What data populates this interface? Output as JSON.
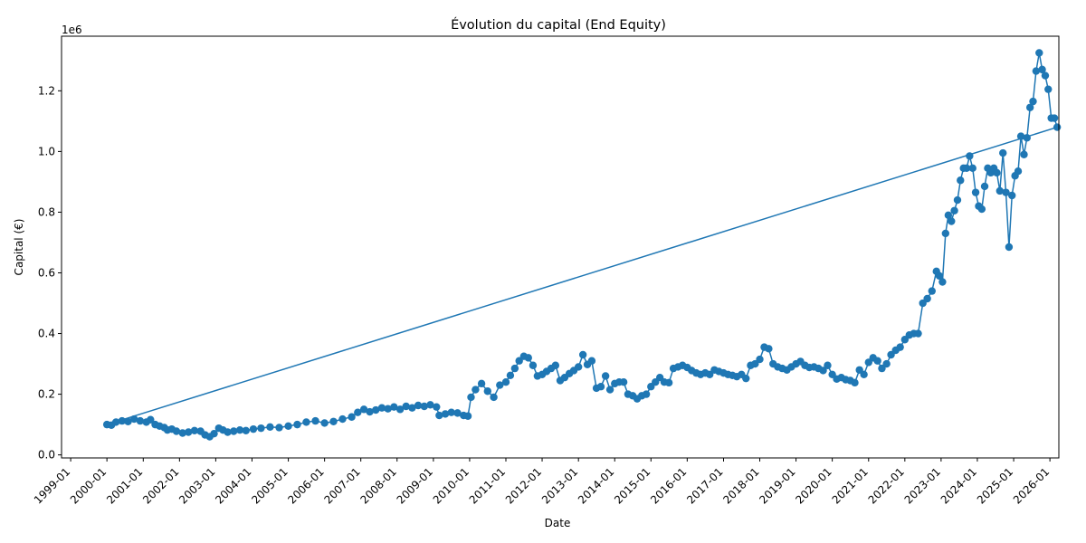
{
  "chart_data": {
    "type": "line",
    "title": "Évolution du capital (End Equity)",
    "xlabel": "Date",
    "ylabel": "Capital (€)",
    "y_offset_label": "1e6",
    "x_tick_labels": [
      "1999-01",
      "2000-01",
      "2001-01",
      "2002-01",
      "2003-01",
      "2004-01",
      "2005-01",
      "2006-01",
      "2007-01",
      "2008-01",
      "2009-01",
      "2010-01",
      "2011-01",
      "2012-01",
      "2013-01",
      "2014-01",
      "2015-01",
      "2016-01",
      "2017-01",
      "2018-01",
      "2019-01",
      "2020-01",
      "2021-01",
      "2022-01",
      "2023-01",
      "2024-01",
      "2025-01",
      "2026-01"
    ],
    "y_ticks": [
      0.0,
      0.2,
      0.4,
      0.6,
      0.8,
      1.0,
      1.2
    ],
    "y_tick_labels": [
      "0.0",
      "0.2",
      "0.4",
      "0.6",
      "0.8",
      "1.0",
      "1.2"
    ],
    "xlim": [
      "1998-10-01",
      "2026-04-01"
    ],
    "ylim": [
      -0.01,
      1.38
    ],
    "y_units": "millions of €",
    "line_color": "#1f77b4",
    "marker": "circle",
    "grid": false,
    "series": [
      {
        "points": [
          [
            "2000-01-01",
            0.1
          ],
          [
            "2000-02-15",
            0.098
          ],
          [
            "2000-04-01",
            0.108
          ],
          [
            "2000-06-01",
            0.112
          ],
          [
            "2000-08-01",
            0.11
          ],
          [
            "2000-10-01",
            0.118
          ],
          [
            "2000-12-01",
            0.112
          ],
          [
            "2001-02-01",
            0.108
          ],
          [
            "2001-03-15",
            0.116
          ],
          [
            "2001-05-01",
            0.1
          ],
          [
            "2001-06-15",
            0.095
          ],
          [
            "2001-08-01",
            0.09
          ],
          [
            "2001-09-01",
            0.082
          ],
          [
            "2001-10-15",
            0.085
          ],
          [
            "2001-12-01",
            0.078
          ],
          [
            "2002-02-01",
            0.072
          ],
          [
            "2002-04-01",
            0.075
          ],
          [
            "2002-06-01",
            0.08
          ],
          [
            "2002-08-01",
            0.078
          ],
          [
            "2002-09-15",
            0.066
          ],
          [
            "2002-11-01",
            0.06
          ],
          [
            "2002-12-15",
            0.07
          ],
          [
            "2003-02-01",
            0.088
          ],
          [
            "2003-03-15",
            0.082
          ],
          [
            "2003-05-01",
            0.075
          ],
          [
            "2003-07-01",
            0.078
          ],
          [
            "2003-09-01",
            0.082
          ],
          [
            "2003-11-01",
            0.08
          ],
          [
            "2004-01-15",
            0.085
          ],
          [
            "2004-04-01",
            0.088
          ],
          [
            "2004-07-01",
            0.092
          ],
          [
            "2004-10-01",
            0.09
          ],
          [
            "2005-01-01",
            0.095
          ],
          [
            "2005-04-01",
            0.1
          ],
          [
            "2005-07-01",
            0.108
          ],
          [
            "2005-10-01",
            0.112
          ],
          [
            "2006-01-01",
            0.105
          ],
          [
            "2006-04-01",
            0.11
          ],
          [
            "2006-07-01",
            0.118
          ],
          [
            "2006-10-01",
            0.125
          ],
          [
            "2006-12-01",
            0.14
          ],
          [
            "2007-02-01",
            0.15
          ],
          [
            "2007-04-01",
            0.142
          ],
          [
            "2007-06-01",
            0.148
          ],
          [
            "2007-08-01",
            0.155
          ],
          [
            "2007-10-01",
            0.152
          ],
          [
            "2007-12-01",
            0.158
          ],
          [
            "2008-02-01",
            0.15
          ],
          [
            "2008-04-01",
            0.16
          ],
          [
            "2008-06-01",
            0.155
          ],
          [
            "2008-08-01",
            0.163
          ],
          [
            "2008-10-01",
            0.16
          ],
          [
            "2008-12-01",
            0.165
          ],
          [
            "2009-02-01",
            0.158
          ],
          [
            "2009-03-01",
            0.13
          ],
          [
            "2009-05-01",
            0.135
          ],
          [
            "2009-07-01",
            0.14
          ],
          [
            "2009-09-01",
            0.138
          ],
          [
            "2009-11-01",
            0.13
          ],
          [
            "2009-12-15",
            0.128
          ],
          [
            "2010-01-15",
            0.19
          ],
          [
            "2010-03-01",
            0.215
          ],
          [
            "2010-05-01",
            0.235
          ],
          [
            "2010-07-01",
            0.21
          ],
          [
            "2010-09-01",
            0.19
          ],
          [
            "2010-11-01",
            0.23
          ],
          [
            "2011-01-01",
            0.24
          ],
          [
            "2011-02-15",
            0.262
          ],
          [
            "2011-04-01",
            0.285
          ],
          [
            "2011-05-15",
            0.31
          ],
          [
            "2011-07-01",
            0.325
          ],
          [
            "2011-08-15",
            0.32
          ],
          [
            "2011-10-01",
            0.295
          ],
          [
            "2011-11-15",
            0.26
          ],
          [
            "2012-01-01",
            0.265
          ],
          [
            "2012-02-15",
            0.275
          ],
          [
            "2012-04-01",
            0.285
          ],
          [
            "2012-05-15",
            0.295
          ],
          [
            "2012-07-01",
            0.245
          ],
          [
            "2012-08-15",
            0.255
          ],
          [
            "2012-10-01",
            0.268
          ],
          [
            "2012-11-15",
            0.278
          ],
          [
            "2013-01-01",
            0.29
          ],
          [
            "2013-02-15",
            0.33
          ],
          [
            "2013-04-01",
            0.298
          ],
          [
            "2013-05-15",
            0.31
          ],
          [
            "2013-07-01",
            0.22
          ],
          [
            "2013-08-15",
            0.225
          ],
          [
            "2013-10-01",
            0.26
          ],
          [
            "2013-11-15",
            0.215
          ],
          [
            "2014-01-01",
            0.235
          ],
          [
            "2014-02-15",
            0.24
          ],
          [
            "2014-04-01",
            0.24
          ],
          [
            "2014-05-15",
            0.2
          ],
          [
            "2014-07-01",
            0.195
          ],
          [
            "2014-08-15",
            0.185
          ],
          [
            "2014-10-01",
            0.195
          ],
          [
            "2014-11-15",
            0.2
          ],
          [
            "2015-01-01",
            0.225
          ],
          [
            "2015-02-15",
            0.24
          ],
          [
            "2015-04-01",
            0.255
          ],
          [
            "2015-05-15",
            0.24
          ],
          [
            "2015-07-01",
            0.238
          ],
          [
            "2015-08-15",
            0.285
          ],
          [
            "2015-10-01",
            0.29
          ],
          [
            "2015-11-15",
            0.295
          ],
          [
            "2016-01-01",
            0.288
          ],
          [
            "2016-02-15",
            0.278
          ],
          [
            "2016-04-01",
            0.27
          ],
          [
            "2016-05-15",
            0.265
          ],
          [
            "2016-07-01",
            0.27
          ],
          [
            "2016-08-15",
            0.265
          ],
          [
            "2016-10-01",
            0.28
          ],
          [
            "2016-11-15",
            0.275
          ],
          [
            "2017-01-01",
            0.27
          ],
          [
            "2017-02-15",
            0.265
          ],
          [
            "2017-04-01",
            0.262
          ],
          [
            "2017-05-15",
            0.258
          ],
          [
            "2017-07-01",
            0.265
          ],
          [
            "2017-08-15",
            0.252
          ],
          [
            "2017-10-01",
            0.295
          ],
          [
            "2017-11-15",
            0.3
          ],
          [
            "2018-01-01",
            0.315
          ],
          [
            "2018-02-15",
            0.355
          ],
          [
            "2018-04-01",
            0.35
          ],
          [
            "2018-05-15",
            0.3
          ],
          [
            "2018-07-01",
            0.29
          ],
          [
            "2018-08-15",
            0.285
          ],
          [
            "2018-10-01",
            0.28
          ],
          [
            "2018-11-15",
            0.29
          ],
          [
            "2019-01-01",
            0.3
          ],
          [
            "2019-02-15",
            0.308
          ],
          [
            "2019-04-01",
            0.295
          ],
          [
            "2019-05-15",
            0.288
          ],
          [
            "2019-07-01",
            0.29
          ],
          [
            "2019-08-15",
            0.285
          ],
          [
            "2019-10-01",
            0.278
          ],
          [
            "2019-11-15",
            0.295
          ],
          [
            "2020-01-01",
            0.265
          ],
          [
            "2020-02-15",
            0.25
          ],
          [
            "2020-04-01",
            0.255
          ],
          [
            "2020-05-15",
            0.248
          ],
          [
            "2020-07-01",
            0.245
          ],
          [
            "2020-08-15",
            0.238
          ],
          [
            "2020-10-01",
            0.28
          ],
          [
            "2020-11-15",
            0.265
          ],
          [
            "2021-01-01",
            0.305
          ],
          [
            "2021-02-15",
            0.32
          ],
          [
            "2021-04-01",
            0.31
          ],
          [
            "2021-05-15",
            0.285
          ],
          [
            "2021-07-01",
            0.3
          ],
          [
            "2021-08-15",
            0.33
          ],
          [
            "2021-10-01",
            0.345
          ],
          [
            "2021-11-15",
            0.355
          ],
          [
            "2022-01-01",
            0.38
          ],
          [
            "2022-02-15",
            0.395
          ],
          [
            "2022-04-01",
            0.4
          ],
          [
            "2022-05-15",
            0.4
          ],
          [
            "2022-07-01",
            0.5
          ],
          [
            "2022-08-15",
            0.515
          ],
          [
            "2022-10-01",
            0.54
          ],
          [
            "2022-11-15",
            0.605
          ],
          [
            "2022-12-15",
            0.59
          ],
          [
            "2023-01-15",
            0.57
          ],
          [
            "2023-02-15",
            0.73
          ],
          [
            "2023-03-15",
            0.79
          ],
          [
            "2023-04-15",
            0.77
          ],
          [
            "2023-05-15",
            0.805
          ],
          [
            "2023-06-15",
            0.84
          ],
          [
            "2023-07-15",
            0.905
          ],
          [
            "2023-08-15",
            0.945
          ],
          [
            "2023-09-15",
            0.945
          ],
          [
            "2023-10-15",
            0.985
          ],
          [
            "2023-11-15",
            0.945
          ],
          [
            "2023-12-15",
            0.865
          ],
          [
            "2024-01-15",
            0.82
          ],
          [
            "2024-02-15",
            0.81
          ],
          [
            "2024-03-15",
            0.885
          ],
          [
            "2024-04-15",
            0.945
          ],
          [
            "2024-05-15",
            0.93
          ],
          [
            "2024-06-15",
            0.945
          ],
          [
            "2024-07-15",
            0.93
          ],
          [
            "2024-08-15",
            0.87
          ],
          [
            "2024-09-15",
            0.995
          ],
          [
            "2024-10-15",
            0.865
          ],
          [
            "2024-11-15",
            0.685
          ],
          [
            "2024-12-15",
            0.855
          ],
          [
            "2025-01-15",
            0.92
          ],
          [
            "2025-02-15",
            0.935
          ],
          [
            "2025-03-15",
            1.05
          ],
          [
            "2025-04-15",
            0.99
          ],
          [
            "2025-05-15",
            1.045
          ],
          [
            "2025-06-15",
            1.145
          ],
          [
            "2025-07-15",
            1.165
          ],
          [
            "2025-08-15",
            1.265
          ],
          [
            "2025-09-15",
            1.325
          ],
          [
            "2025-10-15",
            1.27
          ],
          [
            "2025-11-15",
            1.25
          ],
          [
            "2025-12-15",
            1.205
          ],
          [
            "2026-01-15",
            1.11
          ],
          [
            "2026-02-15",
            1.11
          ],
          [
            "2026-03-15",
            1.08
          ]
        ]
      }
    ]
  }
}
